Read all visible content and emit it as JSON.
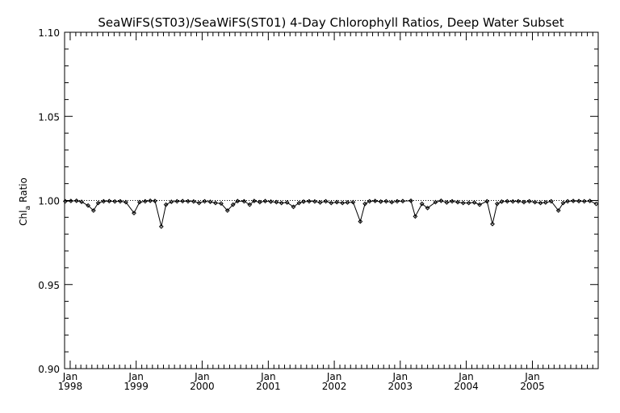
{
  "chart_data": {
    "type": "line",
    "title": "SeaWiFS(ST03)/SeaWiFS(ST01) 4-Day Chlorophyll Ratios, Deep Water Subset",
    "ylabel": "Chl",
    "ylabel_sub": "a",
    "ylabel_suffix": "Ratio",
    "xlim": [
      "1997-12-01",
      "2005-12-31"
    ],
    "ylim": [
      0.9,
      1.1
    ],
    "yticks": [
      {
        "value": 0.9,
        "label": "0.90"
      },
      {
        "value": 0.95,
        "label": "0.95"
      },
      {
        "value": 1.0,
        "label": "1.00"
      },
      {
        "value": 1.05,
        "label": "1.05"
      },
      {
        "value": 1.1,
        "label": "1.10"
      }
    ],
    "xticks": [
      {
        "date": "1998-01-01",
        "month": "Jan",
        "year": "1998"
      },
      {
        "date": "1999-01-01",
        "month": "Jan",
        "year": "1999"
      },
      {
        "date": "2000-01-01",
        "month": "Jan",
        "year": "2000"
      },
      {
        "date": "2001-01-01",
        "month": "Jan",
        "year": "2001"
      },
      {
        "date": "2002-01-01",
        "month": "Jan",
        "year": "2002"
      },
      {
        "date": "2003-01-01",
        "month": "Jan",
        "year": "2003"
      },
      {
        "date": "2004-01-01",
        "month": "Jan",
        "year": "2004"
      },
      {
        "date": "2005-01-01",
        "month": "Jan",
        "year": "2005"
      }
    ],
    "reference_line": {
      "value": 1.0,
      "style": "dotted"
    },
    "series": [
      {
        "marker": "diamond",
        "color": "#000000",
        "points": [
          [
            "1997-12-05",
            0.9995
          ],
          [
            "1998-01-05",
            0.9997
          ],
          [
            "1998-02-05",
            0.9998
          ],
          [
            "1998-03-05",
            0.9992
          ],
          [
            "1998-04-10",
            0.997
          ],
          [
            "1998-05-10",
            0.994
          ],
          [
            "1998-06-05",
            0.9985
          ],
          [
            "1998-07-05",
            0.9995
          ],
          [
            "1998-08-05",
            0.9996
          ],
          [
            "1998-09-05",
            0.9994
          ],
          [
            "1998-10-05",
            0.9995
          ],
          [
            "1998-11-05",
            0.999
          ],
          [
            "1998-12-20",
            0.9925
          ],
          [
            "1999-01-20",
            0.999
          ],
          [
            "1999-02-20",
            0.9995
          ],
          [
            "1999-03-20",
            0.9998
          ],
          [
            "1999-04-15",
            0.9997
          ],
          [
            "1999-05-20",
            0.9845
          ],
          [
            "1999-06-15",
            0.9975
          ],
          [
            "1999-07-15",
            0.9992
          ],
          [
            "1999-08-15",
            0.9995
          ],
          [
            "1999-09-15",
            0.9996
          ],
          [
            "1999-10-15",
            0.9995
          ],
          [
            "1999-11-15",
            0.9994
          ],
          [
            "1999-12-15",
            0.9985
          ],
          [
            "2000-01-15",
            0.9995
          ],
          [
            "2000-02-15",
            0.9992
          ],
          [
            "2000-03-15",
            0.9985
          ],
          [
            "2000-04-15",
            0.9982
          ],
          [
            "2000-05-20",
            0.994
          ],
          [
            "2000-06-20",
            0.9975
          ],
          [
            "2000-07-15",
            0.9996
          ],
          [
            "2000-08-20",
            0.9995
          ],
          [
            "2000-09-20",
            0.9975
          ],
          [
            "2000-10-15",
            0.9997
          ],
          [
            "2000-11-15",
            0.999
          ],
          [
            "2000-12-15",
            0.9996
          ],
          [
            "2001-01-15",
            0.9993
          ],
          [
            "2001-02-15",
            0.999
          ],
          [
            "2001-03-15",
            0.9985
          ],
          [
            "2001-04-15",
            0.9988
          ],
          [
            "2001-05-20",
            0.9962
          ],
          [
            "2001-06-20",
            0.9985
          ],
          [
            "2001-07-15",
            0.9993
          ],
          [
            "2001-08-15",
            0.9995
          ],
          [
            "2001-09-15",
            0.9994
          ],
          [
            "2001-10-15",
            0.9988
          ],
          [
            "2001-11-15",
            0.9995
          ],
          [
            "2001-12-15",
            0.9985
          ],
          [
            "2002-01-15",
            0.999
          ],
          [
            "2002-02-15",
            0.9985
          ],
          [
            "2002-03-15",
            0.9988
          ],
          [
            "2002-04-15",
            0.999
          ],
          [
            "2002-05-25",
            0.9875
          ],
          [
            "2002-06-20",
            0.998
          ],
          [
            "2002-07-15",
            0.9995
          ],
          [
            "2002-08-15",
            0.9997
          ],
          [
            "2002-09-15",
            0.9993
          ],
          [
            "2002-10-15",
            0.9995
          ],
          [
            "2002-11-15",
            0.999
          ],
          [
            "2002-12-15",
            0.9995
          ],
          [
            "2003-01-15",
            0.9996
          ],
          [
            "2003-03-01",
            0.9998
          ],
          [
            "2003-03-25",
            0.9905
          ],
          [
            "2003-05-01",
            0.998
          ],
          [
            "2003-06-01",
            0.9955
          ],
          [
            "2003-07-15",
            0.999
          ],
          [
            "2003-08-15",
            0.9998
          ],
          [
            "2003-09-15",
            0.9988
          ],
          [
            "2003-10-15",
            0.9995
          ],
          [
            "2003-11-15",
            0.999
          ],
          [
            "2003-12-15",
            0.9985
          ],
          [
            "2004-01-15",
            0.9985
          ],
          [
            "2004-02-15",
            0.9988
          ],
          [
            "2004-03-15",
            0.9975
          ],
          [
            "2004-04-25",
            0.9995
          ],
          [
            "2004-05-25",
            0.986
          ],
          [
            "2004-06-20",
            0.998
          ],
          [
            "2004-07-15",
            0.9993
          ],
          [
            "2004-08-15",
            0.9995
          ],
          [
            "2004-09-15",
            0.9994
          ],
          [
            "2004-10-15",
            0.9995
          ],
          [
            "2004-11-15",
            0.999
          ],
          [
            "2004-12-15",
            0.9995
          ],
          [
            "2005-01-15",
            0.999
          ],
          [
            "2005-02-15",
            0.9985
          ],
          [
            "2005-03-15",
            0.9988
          ],
          [
            "2005-04-15",
            0.9995
          ],
          [
            "2005-05-25",
            0.994
          ],
          [
            "2005-06-20",
            0.9985
          ],
          [
            "2005-07-15",
            0.9995
          ],
          [
            "2005-08-15",
            0.9997
          ],
          [
            "2005-09-15",
            0.9996
          ],
          [
            "2005-10-15",
            0.9995
          ],
          [
            "2005-11-15",
            0.9997
          ],
          [
            "2005-12-20",
            0.998
          ]
        ]
      }
    ]
  }
}
